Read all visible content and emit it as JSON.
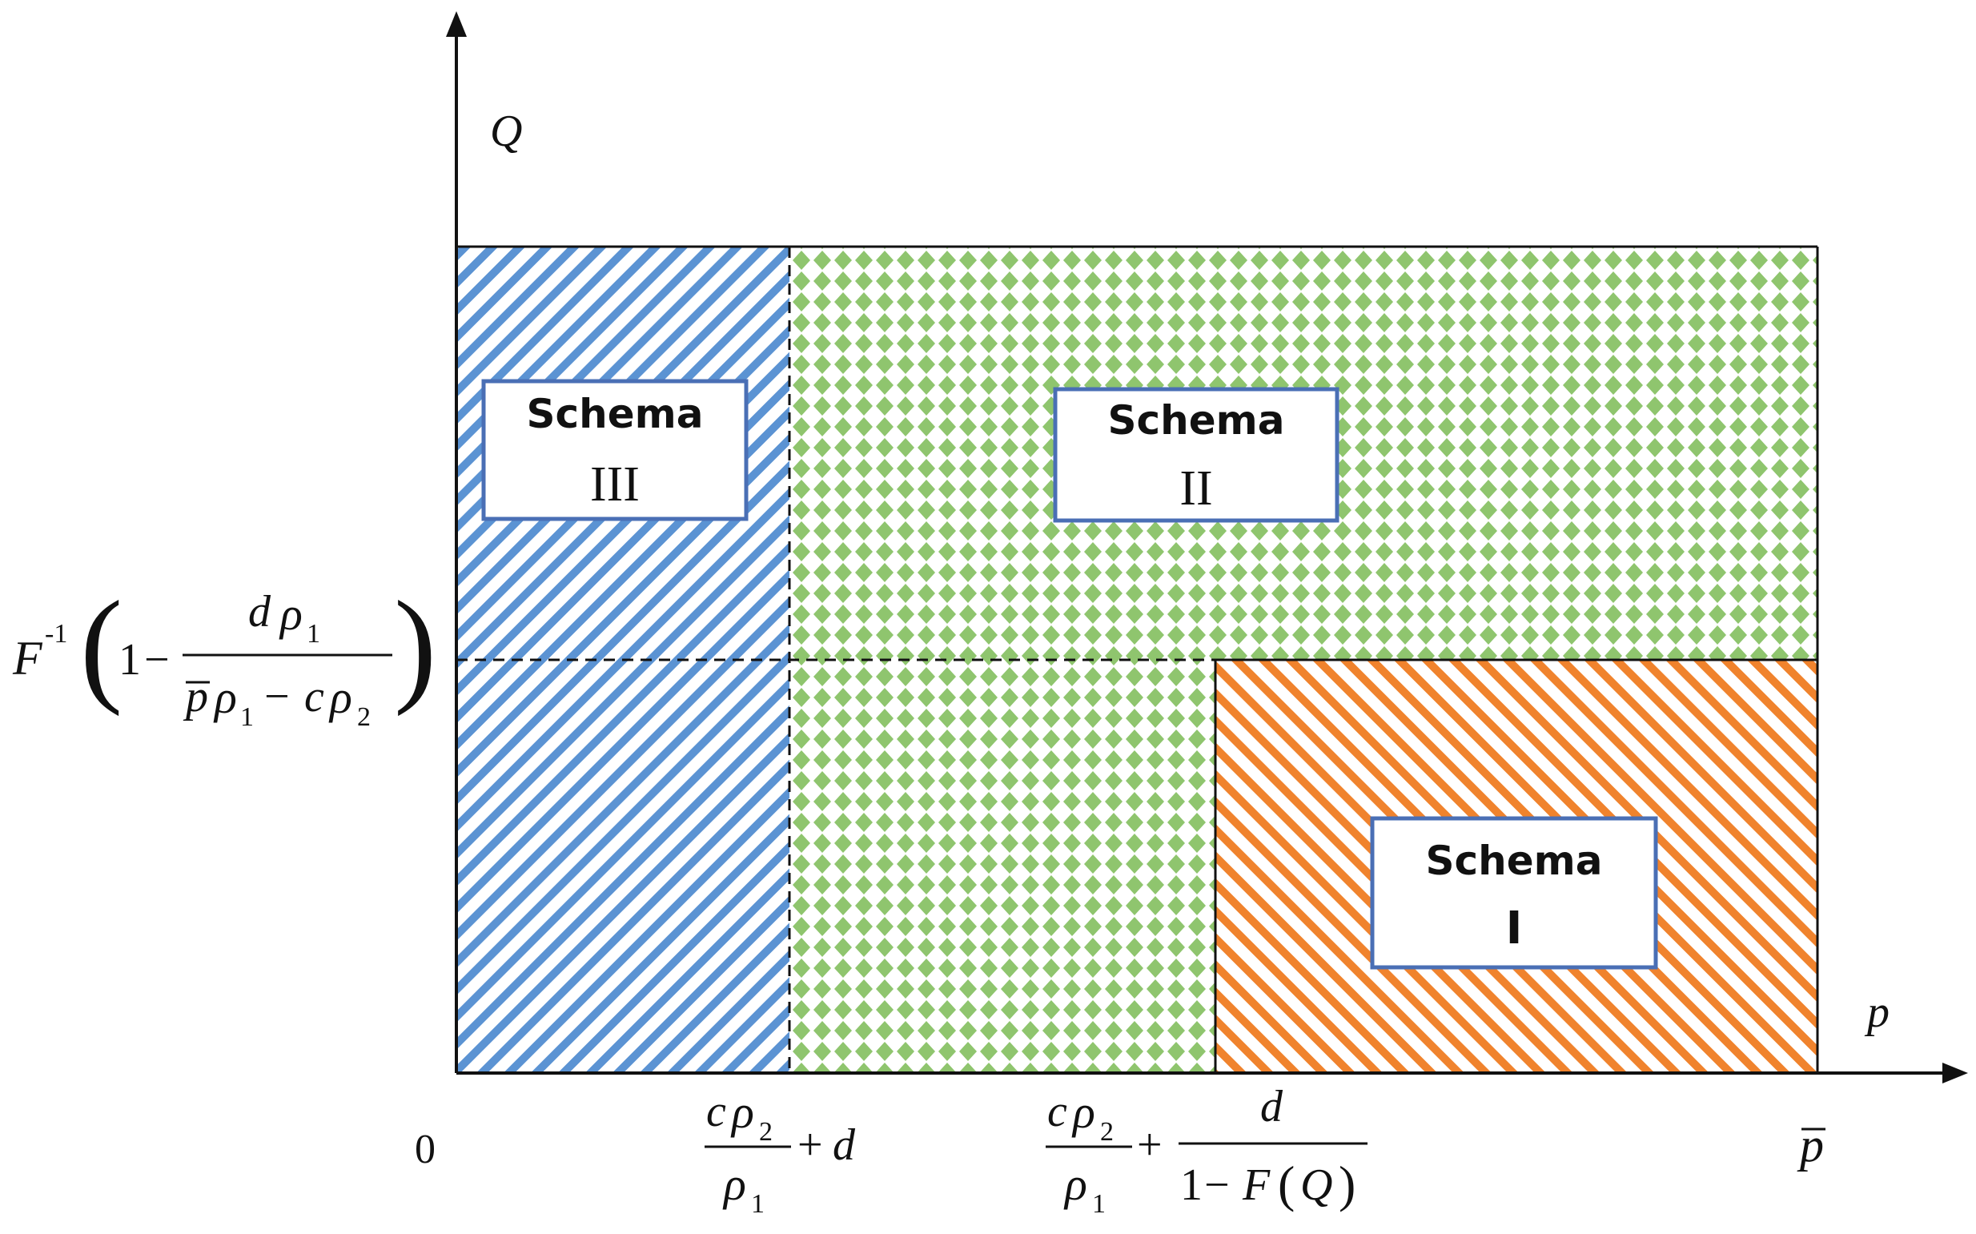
{
  "axes": {
    "y_label": "Q",
    "x_label": "p",
    "origin_label": "0",
    "p_bar_label": "p"
  },
  "y_threshold": {
    "func": "F",
    "exp": "-1",
    "one": "1",
    "minus": "−",
    "num_d": "d",
    "rho": "ρ",
    "sub1": "1",
    "sub2": "2",
    "den_p": "p",
    "den_minus": "−",
    "den_c": "c"
  },
  "x_threshold_1": {
    "c": "c",
    "rho": "ρ",
    "sub2": "2",
    "sub1": "1",
    "plus": "+",
    "d": "d"
  },
  "x_threshold_2": {
    "c": "c",
    "rho": "ρ",
    "sub2": "2",
    "sub1": "1",
    "plus": "+",
    "d": "d",
    "one": "1",
    "minus": "−",
    "F": "F",
    "Q": "Q",
    "lparen": "(",
    "rparen": ")"
  },
  "regions": [
    {
      "title": "Schema",
      "numeral": "III"
    },
    {
      "title": "Schema",
      "numeral": "II"
    },
    {
      "title": "Schema",
      "numeral": "I"
    }
  ],
  "colors": {
    "schema_iii_stripe": "#5b93d3",
    "schema_ii_dots": "#8fc56e",
    "schema_i_stripe": "#f0832d",
    "label_box_border": "#4a6fb5"
  }
}
